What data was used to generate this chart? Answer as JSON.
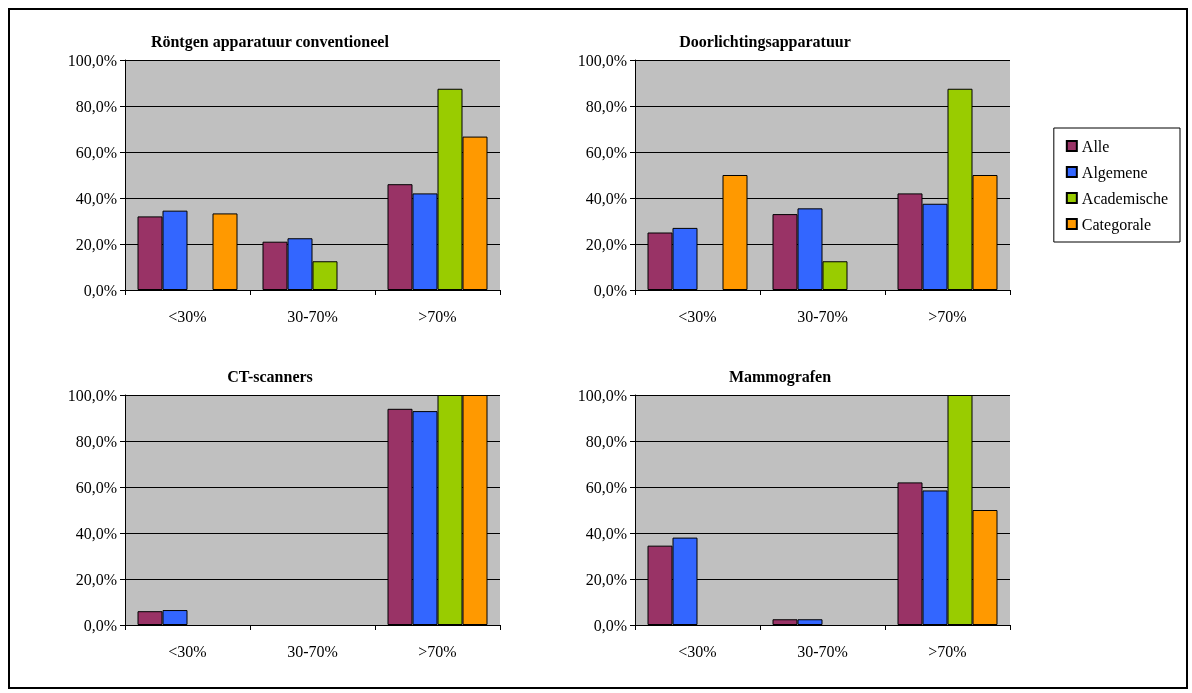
{
  "chart_data": [
    {
      "type": "bar",
      "title": "Röntgen apparatuur conventioneel",
      "categories": [
        "<30%",
        "30-70%",
        ">70%"
      ],
      "series": [
        {
          "color": "#993366",
          "values": [
            32,
            21,
            46
          ]
        },
        {
          "color": "#3366ff",
          "values": [
            34.5,
            22.5,
            42
          ]
        },
        {
          "color": "#99cc00",
          "values": [
            null,
            12.5,
            87.5
          ]
        },
        {
          "color": "#ff9900",
          "values": [
            33.3,
            null,
            66.7
          ]
        }
      ],
      "ylim": [
        0,
        100
      ],
      "yticks": [
        {
          "value": 0,
          "label": "0,0%"
        },
        {
          "value": 20,
          "label": "20,0%"
        },
        {
          "value": 40,
          "label": "40,0%"
        },
        {
          "value": 60,
          "label": "60,0%"
        },
        {
          "value": 80,
          "label": "80,0%"
        },
        {
          "value": 100,
          "label": "100,0%"
        }
      ],
      "grid": "y",
      "legend": false
    },
    {
      "type": "bar",
      "title": "Doorlichtingsapparatuur",
      "categories": [
        "<30%",
        "30-70%",
        ">70%"
      ],
      "series": [
        {
          "name": "Alle",
          "color": "#993366",
          "values": [
            25,
            33,
            42
          ]
        },
        {
          "name": "Algemene",
          "color": "#3366ff",
          "values": [
            27,
            35.5,
            37.5
          ]
        },
        {
          "name": "Academische",
          "color": "#99cc00",
          "values": [
            null,
            12.5,
            87.5
          ]
        },
        {
          "name": "Categorale",
          "color": "#ff9900",
          "values": [
            50,
            null,
            50
          ]
        }
      ],
      "ylim": [
        0,
        100
      ],
      "yticks": [
        {
          "value": 0,
          "label": "0,0%"
        },
        {
          "value": 20,
          "label": "20,0%"
        },
        {
          "value": 40,
          "label": "40,0%"
        },
        {
          "value": 60,
          "label": "60,0%"
        },
        {
          "value": 80,
          "label": "80,0%"
        },
        {
          "value": 100,
          "label": "100,0%"
        }
      ],
      "grid": "y",
      "legend": "right"
    },
    {
      "type": "bar",
      "title": "CT-scanners",
      "categories": [
        "<30%",
        "30-70%",
        ">70%"
      ],
      "series": [
        {
          "color": "#993366",
          "values": [
            6,
            null,
            94
          ]
        },
        {
          "color": "#3366ff",
          "values": [
            6.5,
            null,
            93
          ]
        },
        {
          "color": "#99cc00",
          "values": [
            null,
            null,
            100
          ]
        },
        {
          "color": "#ff9900",
          "values": [
            null,
            null,
            100
          ]
        }
      ],
      "ylim": [
        0,
        100
      ],
      "yticks": [
        {
          "value": 0,
          "label": "0,0%"
        },
        {
          "value": 20,
          "label": "20,0%"
        },
        {
          "value": 40,
          "label": "40,0%"
        },
        {
          "value": 60,
          "label": "60,0%"
        },
        {
          "value": 80,
          "label": "80,0%"
        },
        {
          "value": 100,
          "label": "100,0%"
        }
      ],
      "grid": "y",
      "legend": false
    },
    {
      "type": "bar",
      "title": "Mammografen",
      "categories": [
        "<30%",
        "30-70%",
        ">70%"
      ],
      "series": [
        {
          "color": "#993366",
          "values": [
            34.5,
            2.5,
            62
          ]
        },
        {
          "color": "#3366ff",
          "values": [
            38,
            2.5,
            58.5
          ]
        },
        {
          "color": "#99cc00",
          "values": [
            null,
            null,
            100
          ]
        },
        {
          "color": "#ff9900",
          "values": [
            null,
            null,
            50
          ]
        }
      ],
      "ylim": [
        0,
        100
      ],
      "yticks": [
        {
          "value": 0,
          "label": "0,0%"
        },
        {
          "value": 20,
          "label": "20,0%"
        },
        {
          "value": 40,
          "label": "40,0%"
        },
        {
          "value": 60,
          "label": "60,0%"
        },
        {
          "value": 80,
          "label": "80,0%"
        },
        {
          "value": 100,
          "label": "100,0%"
        }
      ],
      "grid": "y",
      "legend": false
    }
  ]
}
